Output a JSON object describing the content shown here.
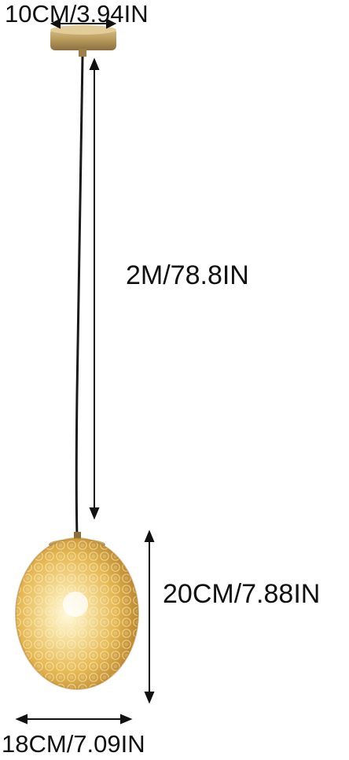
{
  "dimensions": {
    "canopy_diameter": "10CM/3.94IN",
    "cord_length": "2M/78.8IN",
    "shade_height": "20CM/7.88IN",
    "shade_width": "18CM/7.09IN"
  },
  "colors": {
    "background": "#ffffff",
    "brass": "#b99b5c",
    "cord": "#1a1a1a",
    "glass_amber": "#e2b24a",
    "glass_light": "#f7e3a5",
    "arrow": "#111111"
  }
}
